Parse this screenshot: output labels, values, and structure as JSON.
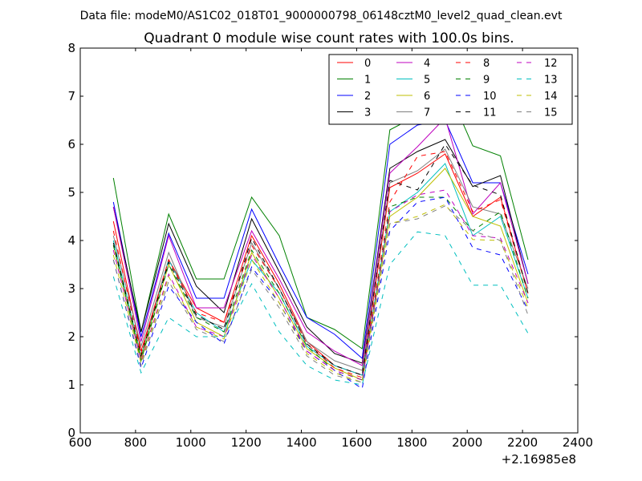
{
  "figure": {
    "suptitle": "Data file: modeM0/AS1C02_018T01_9000000798_06148cztM0_level2_quad_clean.evt"
  },
  "chart_data": {
    "type": "line",
    "title": "Quadrant 0 module wise count rates with 100.0s bins.",
    "xlabel": "",
    "ylabel": "",
    "x_offset_label": "+2.16985e8",
    "xlim": [
      600,
      2400
    ],
    "ylim": [
      0,
      8
    ],
    "x_ticks": [
      600,
      800,
      1000,
      1200,
      1400,
      1600,
      1800,
      2000,
      2200,
      2400
    ],
    "y_ticks": [
      0,
      1,
      2,
      3,
      4,
      5,
      6,
      7,
      8
    ],
    "grid": false,
    "legend_location": "top-right",
    "legend_columns": 4,
    "x": [
      720,
      820,
      920,
      1020,
      1120,
      1220,
      1320,
      1420,
      1520,
      1620,
      1720,
      1820,
      1920,
      2020,
      2120,
      2220
    ],
    "series": [
      {
        "name": "0",
        "color": "#ff0000",
        "dash": "solid",
        "values": [
          4.4,
          1.7,
          3.6,
          2.6,
          2.3,
          4.1,
          3.1,
          1.9,
          1.4,
          1.2,
          5.1,
          5.4,
          5.8,
          4.5,
          4.9,
          2.9
        ]
      },
      {
        "name": "1",
        "color": "#008000",
        "dash": "solid",
        "values": [
          5.3,
          2.1,
          4.55,
          3.2,
          3.2,
          4.9,
          4.1,
          2.4,
          2.15,
          1.75,
          6.3,
          6.6,
          7.28,
          5.97,
          5.76,
          3.6
        ]
      },
      {
        "name": "2",
        "color": "#0000ff",
        "dash": "solid",
        "values": [
          4.8,
          2.0,
          4.15,
          2.8,
          2.8,
          4.65,
          3.5,
          2.4,
          2.05,
          1.55,
          6.0,
          6.4,
          6.5,
          5.2,
          5.2,
          3.3
        ]
      },
      {
        "name": "3",
        "color": "#000000",
        "dash": "solid",
        "values": [
          4.7,
          2.1,
          4.35,
          3.05,
          2.5,
          4.45,
          3.35,
          2.2,
          1.65,
          1.45,
          5.5,
          5.85,
          6.1,
          5.12,
          5.35,
          3.1
        ]
      },
      {
        "name": "4",
        "color": "#bf00bf",
        "dash": "solid",
        "values": [
          4.7,
          1.9,
          4.1,
          2.6,
          2.6,
          4.2,
          3.2,
          2.1,
          1.7,
          1.4,
          5.4,
          5.95,
          6.55,
          4.55,
          5.2,
          3.1
        ]
      },
      {
        "name": "5",
        "color": "#00bfbf",
        "dash": "solid",
        "values": [
          4.0,
          1.6,
          3.6,
          2.5,
          2.1,
          3.6,
          2.9,
          1.8,
          1.4,
          1.2,
          4.6,
          5.0,
          5.6,
          4.1,
          4.5,
          2.8
        ]
      },
      {
        "name": "6",
        "color": "#bfbf00",
        "dash": "solid",
        "values": [
          3.9,
          1.55,
          3.5,
          2.3,
          2.0,
          3.75,
          2.8,
          1.75,
          1.35,
          1.1,
          4.5,
          4.9,
          5.5,
          4.5,
          4.3,
          2.7
        ]
      },
      {
        "name": "7",
        "color": "#7f7f7f",
        "dash": "solid",
        "values": [
          4.1,
          1.8,
          3.75,
          2.4,
          2.2,
          3.95,
          3.0,
          1.9,
          1.5,
          1.3,
          5.2,
          5.45,
          5.9,
          4.7,
          4.55,
          3.0
        ]
      },
      {
        "name": "8",
        "color": "#ff0000",
        "dash": "dashed",
        "values": [
          4.2,
          1.65,
          3.6,
          2.5,
          2.3,
          3.9,
          3.0,
          1.85,
          1.35,
          1.15,
          4.8,
          5.75,
          5.85,
          4.6,
          4.85,
          2.9
        ]
      },
      {
        "name": "9",
        "color": "#008000",
        "dash": "dashed",
        "values": [
          3.9,
          1.5,
          3.5,
          2.4,
          2.1,
          3.8,
          2.9,
          1.8,
          1.3,
          1.1,
          4.7,
          4.9,
          4.9,
          4.2,
          4.6,
          2.8
        ]
      },
      {
        "name": "10",
        "color": "#0000ff",
        "dash": "dashed",
        "values": [
          3.6,
          1.35,
          3.05,
          2.3,
          1.85,
          3.45,
          2.7,
          1.7,
          1.3,
          0.92,
          4.2,
          4.8,
          4.9,
          3.85,
          3.7,
          2.55
        ]
      },
      {
        "name": "11",
        "color": "#000000",
        "dash": "dashed",
        "values": [
          3.95,
          1.6,
          3.55,
          2.45,
          2.15,
          4.05,
          3.0,
          1.85,
          1.4,
          1.2,
          5.25,
          5.05,
          6.0,
          5.15,
          4.95,
          2.9
        ]
      },
      {
        "name": "12",
        "color": "#bf00bf",
        "dash": "dashed",
        "values": [
          3.8,
          1.5,
          3.3,
          2.2,
          2.0,
          3.7,
          2.8,
          1.7,
          1.3,
          1.1,
          4.6,
          4.95,
          5.05,
          4.1,
          4.05,
          2.7
        ]
      },
      {
        "name": "13",
        "color": "#00bfbf",
        "dash": "dashed",
        "values": [
          3.25,
          1.25,
          2.4,
          2.0,
          2.0,
          3.1,
          2.1,
          1.4,
          1.1,
          1.0,
          3.5,
          4.18,
          4.1,
          3.07,
          3.07,
          2.07
        ]
      },
      {
        "name": "14",
        "color": "#bfbf00",
        "dash": "dashed",
        "values": [
          3.7,
          1.45,
          3.25,
          2.2,
          1.95,
          3.6,
          2.7,
          1.65,
          1.25,
          1.05,
          4.35,
          4.5,
          4.75,
          4.02,
          4.0,
          2.6
        ]
      },
      {
        "name": "15",
        "color": "#7f7f7f",
        "dash": "dashed",
        "values": [
          3.6,
          1.4,
          3.15,
          2.15,
          1.9,
          3.4,
          2.6,
          1.6,
          1.2,
          1.05,
          4.35,
          4.45,
          4.72,
          4.2,
          4.0,
          2.45
        ]
      }
    ]
  }
}
